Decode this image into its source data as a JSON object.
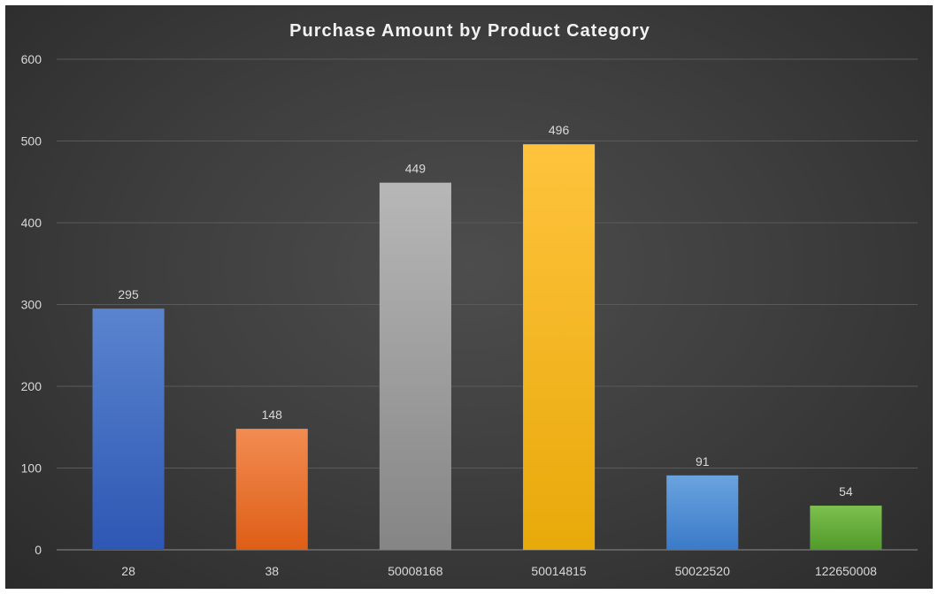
{
  "chart_data": {
    "type": "bar",
    "title": "Purchase Amount by Product Category",
    "xlabel": "",
    "ylabel": "",
    "categories": [
      "28",
      "38",
      "50008168",
      "50014815",
      "50022520",
      "122650008"
    ],
    "values": [
      295,
      148,
      449,
      496,
      91,
      54
    ],
    "data_labels": [
      "295",
      "148",
      "449",
      "496",
      "91",
      "54"
    ],
    "ylim": [
      0,
      600
    ],
    "yticks": [
      "0",
      "100",
      "200",
      "300",
      "400",
      "500",
      "600"
    ],
    "grid": true,
    "legend": "none",
    "bar_colors": [
      [
        "#5b84cf",
        "#2d57b3"
      ],
      [
        "#f28c52",
        "#de5e16"
      ],
      [
        "#b7b7b7",
        "#858585"
      ],
      [
        "#ffc33d",
        "#e8a90a"
      ],
      [
        "#6aa3df",
        "#3a7ac8"
      ],
      [
        "#7dc04e",
        "#519a2b"
      ]
    ]
  }
}
